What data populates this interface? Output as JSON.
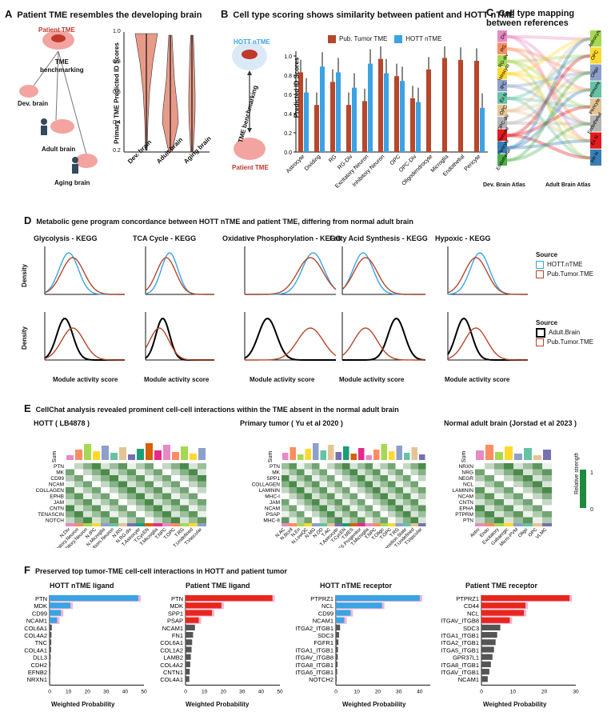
{
  "panelA": {
    "letter": "A",
    "title": "Patient TME resembles the developing brain",
    "nodes": {
      "patient": "Patient TME",
      "bench": "TME\nbenchmarking",
      "dev": "Dev. brain",
      "adult": "Adult brain",
      "aging": "Aging brain"
    },
    "violin": {
      "ylabel": "Primary TME Predicted ID Scores",
      "yticks": [
        "1.0",
        "0.8",
        "0.6",
        "0.4",
        "0.2"
      ],
      "xlabels": [
        "Dev. brain",
        "Adult brain",
        "Aging brain"
      ]
    }
  },
  "panelB": {
    "letter": "B",
    "title": "Cell type scoring shows similarity between patient and HOTT nTME",
    "hott": "HOTT nTME",
    "bench": "TME benchmarking",
    "patient": "Patient TME",
    "legend": [
      "Pub. Tumor TME",
      "HOTT nTME"
    ]
  },
  "panelC": {
    "letter": "C",
    "title": "Cell type mapping between references",
    "left_label": "Dev. Brain Atlas",
    "right_label": "Adult Brain Atlas",
    "left_types": [
      "Div",
      "RG",
      "RG-div",
      "Astrocyte",
      "IPC",
      "Ex N",
      "OPC",
      "OPC-div",
      "Immune",
      "Pericyte",
      "Endothelial"
    ],
    "right_types": [
      "Astrocyte",
      "OPC",
      "Oligo",
      "Immune",
      "Pericyte",
      "Endothelial",
      "Ex N",
      "Inh N"
    ],
    "colors": [
      "#e78ac3",
      "#fc8d62",
      "#a6d854",
      "#ffd92f",
      "#8da0cb",
      "#66c2a5",
      "#e5c494",
      "#b3b3b3",
      "#e41a1c",
      "#377eb8",
      "#4daf4a"
    ]
  },
  "panelD": {
    "letter": "D",
    "title": "Metabolic gene program concordance between HOTT nTME and patient TME, differing from normal adult brain",
    "programs": [
      "Glycolysis - KEGG",
      "TCA Cycle - KEGG",
      "Oxidative Phosphorylation - KEGG",
      "Fatty Acid Synthesis - KEGG",
      "Hypoxic - KEGG"
    ],
    "ylabel": "Density",
    "xlabel": "Module activity score",
    "legend1": {
      "title": "Source",
      "items": [
        "HOTT.nTME",
        "Pub.Tumor.TME"
      ]
    },
    "legend2": {
      "title": "Source",
      "items": [
        "Adult.Brain",
        "Pub.Tumor.TME"
      ]
    }
  },
  "panelE": {
    "letter": "E",
    "title": "CellChat analysis revealed prominent cell-cell interactions within the TME absent in the normal adult brain",
    "sub1": "HOTT ( LB4878 )",
    "sub2": "Primary tumor ( Yu et al 2020 )",
    "sub3": "Normal adult brain (Jorstad et al 2023 )",
    "sumlabel": "Sum",
    "rows1": [
      "PTN",
      "MK",
      "CD99",
      "NCAM",
      "COLLAGEN",
      "EPHB",
      "JAM",
      "CNTN",
      "TENASCIN",
      "NOTCH"
    ],
    "rows2": [
      "PTN",
      "MK",
      "SPP1",
      "COLLAGEN",
      "LAMININ",
      "MHC-I",
      "JAM",
      "NCAM",
      "PSAP",
      "MHC-II"
    ],
    "rows3": [
      "NRXN",
      "NRG",
      "NEGR",
      "NCL",
      "LAMININ",
      "NCAM",
      "CNTN",
      "EPHA",
      "PTPRM",
      "PTN"
    ],
    "cols1": [
      "N.Div",
      "N.Excitatory.Neuron",
      "N.Inhibitory.Neuron",
      "N.IPC",
      "N.Microglia",
      "N.Newborn.Neuron",
      "N.RG",
      "N.RG.div",
      "T.Astrocyte",
      "T.CycEN",
      "T.Microglia",
      "T.NPC",
      "T.OPC",
      "T.RG",
      "T.Undefined",
      "T.Vascular"
    ],
    "cols2": [
      "N.AC",
      "N.Bcell",
      "N.En",
      "N.LowQC",
      "N.MG",
      "N.OD",
      "T.AC",
      "T.Astrocyte",
      "T.CycEN",
      "T.MES",
      "T.MES.Progenitor",
      "T.Microglia",
      "T.NPC",
      "T.Oligo",
      "T.OPC",
      "T.RG",
      "T.Transition.State",
      "T.Undefined",
      "T.Vascular"
    ],
    "cols3": [
      "Astro",
      "Endo",
      "Excitatory",
      "Gabaergic",
      "Micro-PVM",
      "Oligo",
      "OPC",
      "VLMC"
    ],
    "legend_title": "Relative strength",
    "legend_max": "1",
    "legend_min": "0"
  },
  "panelF": {
    "letter": "F",
    "title": "Preserved top tumor-TME cell-cell interactions in HOTT and patient tumor",
    "xlabel": "Weighted Probability",
    "charts": [
      {
        "title": "HOTT nTME ligand",
        "labels": [
          "PTN",
          "MDK",
          "CD99",
          "NCAM1",
          "COL6A1",
          "COL4A2",
          "TNC",
          "COL4A1",
          "DLL3",
          "CDH2",
          "EFNB2",
          "NRXN1"
        ],
        "values": [
          47,
          11,
          6,
          4,
          1.2,
          1.0,
          0.9,
          0.8,
          0.6,
          0.5,
          0.4,
          0.3
        ],
        "xmax": 50,
        "ticks": [
          "0",
          "10",
          "20",
          "30",
          "40",
          "50"
        ],
        "highlight": "#3aa3e3",
        "shadow": "#f2b5d5"
      },
      {
        "title": "Patient TME ligand",
        "labels": [
          "PTN",
          "MDK",
          "SPP1",
          "PSAP",
          "NCAM1",
          "FN1",
          "COL6A1",
          "COL1A2",
          "LAMB2",
          "COL4A2",
          "CNTN1",
          "COL4A1"
        ],
        "values": [
          46,
          19,
          14,
          7,
          5,
          4,
          3.5,
          3.2,
          2.8,
          2.5,
          2.2,
          2.0
        ],
        "xmax": 50,
        "ticks": [
          "0",
          "10",
          "20",
          "30",
          "40",
          "50"
        ],
        "highlight": "#e8261e",
        "shadow": "#f2b5d5"
      },
      {
        "title": "HOTT nTME receptor",
        "labels": [
          "PTPRZ1",
          "NCL",
          "CD99",
          "NCAM1",
          "ITGA2_ITGB1",
          "SDC3",
          "FGFR1",
          "ITGA1_ITGB1",
          "ITGAV_ITGB8",
          "ITGA8_ITGB1",
          "ITGA6_ITGB1",
          "NOTCH2"
        ],
        "values": [
          40,
          22,
          7,
          4,
          2,
          1.5,
          1.2,
          1.0,
          0.9,
          0.8,
          0.6,
          0.4
        ],
        "xmax": 45,
        "ticks": [
          "0",
          "10",
          "20",
          "30",
          "40"
        ],
        "highlight": "#3aa3e3",
        "shadow": "#f2b5d5"
      },
      {
        "title": "Patient TME receptor",
        "labels": [
          "PTPRZ1",
          "CD44",
          "NCL",
          "ITGAV_ITGB8",
          "SDC3",
          "ITGA1_ITGB1",
          "ITGA2_ITGB1",
          "ITGA5_ITGB1",
          "GPR37L1",
          "ITGA8_ITGB1",
          "ITGAV_ITGB1",
          "NCAM1"
        ],
        "values": [
          28,
          14,
          13.5,
          9,
          6,
          5,
          4.5,
          4,
          3.5,
          3,
          2.5,
          2
        ],
        "xmax": 30,
        "ticks": [
          "0",
          "10",
          "20",
          "30"
        ],
        "highlight": "#e8261e",
        "shadow": "#f2b5d5"
      }
    ]
  }
}
